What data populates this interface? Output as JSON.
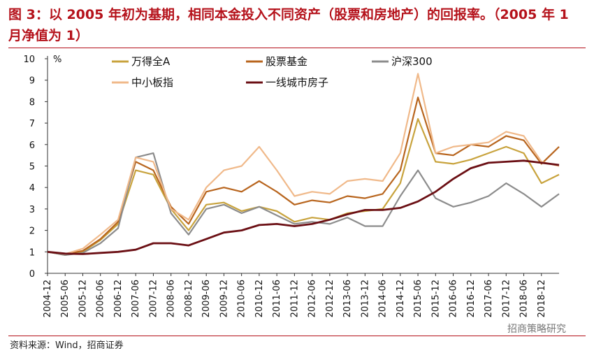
{
  "header": {
    "title": "图 3：以 2005 年初为基期，相同本金投入不同资产（股票和房地产）的回报率。（2005 年 1 月净值为 1）"
  },
  "footer": {
    "source": "资料来源：Wind，招商证券",
    "watermark": "招商策略研究"
  },
  "chart_data": {
    "type": "line",
    "ylabel": "%",
    "ylim": [
      0,
      10
    ],
    "yticks": [
      0,
      1,
      2,
      3,
      4,
      5,
      6,
      7,
      8,
      9,
      10
    ],
    "x": [
      "2004-12",
      "2005-06",
      "2005-12",
      "2006-06",
      "2006-12",
      "2007-06",
      "2007-12",
      "2008-06",
      "2008-12",
      "2009-06",
      "2009-12",
      "2010-06",
      "2010-12",
      "2011-06",
      "2011-12",
      "2012-06",
      "2012-12",
      "2013-06",
      "2013-12",
      "2014-06",
      "2014-12",
      "2015-06",
      "2015-12",
      "2016-06",
      "2016-12",
      "2017-06",
      "2017-12",
      "2018-06",
      "2018-12",
      "2019-02"
    ],
    "xtick_labels": [
      "2004-12",
      "2005-06",
      "2005-12",
      "2006-06",
      "2006-12",
      "2007-06",
      "2007-12",
      "2008-06",
      "2008-12",
      "2009-06",
      "2009-12",
      "2010-06",
      "2010-12",
      "2011-06",
      "2011-12",
      "2012-06",
      "2012-12",
      "2013-06",
      "2013-12",
      "2014-06",
      "2014-12",
      "2015-06",
      "2015-12",
      "2016-06",
      "2016-12",
      "2017-06",
      "2017-12",
      "2018-06",
      "2018-12"
    ],
    "grid": false,
    "legend_position": "top",
    "series": [
      {
        "name": "万得全A",
        "color": "#c8a33d",
        "values": [
          1.0,
          0.85,
          1.0,
          1.55,
          2.3,
          4.8,
          4.6,
          3.0,
          2.0,
          3.2,
          3.3,
          2.9,
          3.1,
          2.9,
          2.4,
          2.6,
          2.5,
          2.8,
          2.9,
          3.0,
          4.2,
          7.2,
          5.2,
          5.1,
          5.3,
          5.6,
          5.9,
          5.6,
          4.2,
          4.6
        ]
      },
      {
        "name": "股票基金",
        "color": "#b8651e",
        "values": [
          1.0,
          0.9,
          1.05,
          1.6,
          2.4,
          5.2,
          4.8,
          3.1,
          2.3,
          3.8,
          4.0,
          3.8,
          4.3,
          3.8,
          3.2,
          3.4,
          3.3,
          3.6,
          3.5,
          3.7,
          4.8,
          8.2,
          5.6,
          5.5,
          6.0,
          5.9,
          6.4,
          6.2,
          5.1,
          5.9
        ]
      },
      {
        "name": "沪深300",
        "color": "#8c8c8c",
        "values": [
          1.0,
          0.85,
          0.95,
          1.4,
          2.1,
          5.4,
          5.6,
          2.8,
          1.8,
          3.0,
          3.2,
          2.8,
          3.1,
          2.7,
          2.3,
          2.4,
          2.3,
          2.6,
          2.2,
          2.2,
          3.6,
          4.8,
          3.5,
          3.1,
          3.3,
          3.6,
          4.2,
          3.7,
          3.1,
          3.7
        ]
      },
      {
        "name": "中小板指",
        "color": "#f0b98a",
        "values": [
          1.0,
          0.9,
          1.15,
          1.8,
          2.5,
          5.4,
          5.2,
          3.0,
          2.5,
          4.0,
          4.8,
          5.0,
          5.9,
          4.8,
          3.6,
          3.8,
          3.7,
          4.3,
          4.4,
          4.3,
          5.6,
          9.3,
          5.6,
          5.9,
          6.0,
          6.1,
          6.6,
          6.4,
          5.2,
          5.0
        ]
      },
      {
        "name": "一线城市房子",
        "color": "#6b0f14",
        "values": [
          1.0,
          0.92,
          0.9,
          0.95,
          1.0,
          1.1,
          1.4,
          1.4,
          1.3,
          1.6,
          1.9,
          2.0,
          2.25,
          2.3,
          2.2,
          2.3,
          2.5,
          2.75,
          2.95,
          2.95,
          3.05,
          3.35,
          3.8,
          4.4,
          4.9,
          5.15,
          5.2,
          5.25,
          5.15,
          5.05
        ]
      }
    ]
  }
}
